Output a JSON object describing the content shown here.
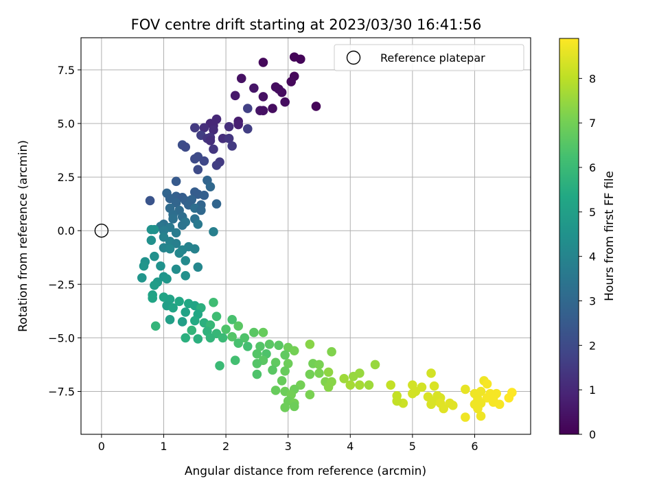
{
  "chart_data": {
    "type": "scatter",
    "title": "FOV centre drift starting at 2023/03/30 16:41:56",
    "xlabel": "Angular distance from reference (arcmin)",
    "ylabel": "Rotation from reference (arcmin)",
    "xlim": [
      -0.33,
      6.9
    ],
    "ylim": [
      -9.5,
      9.0
    ],
    "xticks": [
      0,
      1,
      2,
      3,
      4,
      5,
      6
    ],
    "xtick_labels": [
      "0",
      "1",
      "2",
      "3",
      "4",
      "5",
      "6"
    ],
    "yticks": [
      -7.5,
      -5.0,
      -2.5,
      0.0,
      2.5,
      5.0,
      7.5
    ],
    "ytick_labels": [
      "−7.5",
      "−5.0",
      "−2.5",
      "0.0",
      "2.5",
      "5.0",
      "7.5"
    ],
    "grid": true,
    "legend_position": "top-right",
    "reference_point": {
      "name": "Reference platepar",
      "x": 0,
      "y": 0
    },
    "colorbar": {
      "label": "Hours from first FF file",
      "colormap": "viridis",
      "range": [
        0,
        8.9
      ],
      "ticks": [
        0,
        1,
        2,
        3,
        4,
        5,
        6,
        7,
        8
      ],
      "tick_labels": [
        "0",
        "1",
        "2",
        "3",
        "4",
        "5",
        "6",
        "7",
        "8"
      ]
    },
    "points": [
      {
        "x": 3.1,
        "y": 8.1,
        "t": 0.1
      },
      {
        "x": 3.2,
        "y": 8.0,
        "t": 0.1
      },
      {
        "x": 2.6,
        "y": 7.85,
        "t": 0.2
      },
      {
        "x": 3.1,
        "y": 7.2,
        "t": 0.15
      },
      {
        "x": 2.25,
        "y": 7.1,
        "t": 0.4
      },
      {
        "x": 3.05,
        "y": 6.95,
        "t": 0.2
      },
      {
        "x": 2.8,
        "y": 6.7,
        "t": 0.3
      },
      {
        "x": 2.85,
        "y": 6.6,
        "t": 0.3
      },
      {
        "x": 2.45,
        "y": 6.65,
        "t": 0.5
      },
      {
        "x": 2.9,
        "y": 6.45,
        "t": 0.3
      },
      {
        "x": 2.15,
        "y": 6.3,
        "t": 0.6
      },
      {
        "x": 2.6,
        "y": 6.25,
        "t": 0.4
      },
      {
        "x": 2.95,
        "y": 6.0,
        "t": 0.3
      },
      {
        "x": 3.45,
        "y": 5.8,
        "t": 0.1
      },
      {
        "x": 2.35,
        "y": 5.7,
        "t": 1.7
      },
      {
        "x": 2.75,
        "y": 5.7,
        "t": 0.3
      },
      {
        "x": 2.55,
        "y": 5.6,
        "t": 0.5
      },
      {
        "x": 2.6,
        "y": 5.6,
        "t": 0.4
      },
      {
        "x": 1.85,
        "y": 5.2,
        "t": 1.0
      },
      {
        "x": 2.2,
        "y": 5.1,
        "t": 0.7
      },
      {
        "x": 1.75,
        "y": 5.0,
        "t": 1.0
      },
      {
        "x": 2.2,
        "y": 4.95,
        "t": 0.8
      },
      {
        "x": 1.8,
        "y": 4.9,
        "t": 1.0
      },
      {
        "x": 2.05,
        "y": 4.85,
        "t": 1.2
      },
      {
        "x": 1.5,
        "y": 4.8,
        "t": 1.5
      },
      {
        "x": 1.65,
        "y": 4.8,
        "t": 1.2
      },
      {
        "x": 2.35,
        "y": 4.75,
        "t": 1.6
      },
      {
        "x": 1.8,
        "y": 4.7,
        "t": 1.1
      },
      {
        "x": 1.6,
        "y": 4.45,
        "t": 1.6
      },
      {
        "x": 1.75,
        "y": 4.35,
        "t": 1.3
      },
      {
        "x": 1.7,
        "y": 4.3,
        "t": 1.4
      },
      {
        "x": 1.95,
        "y": 4.3,
        "t": 1.2
      },
      {
        "x": 1.75,
        "y": 4.2,
        "t": 1.2
      },
      {
        "x": 2.05,
        "y": 4.3,
        "t": 1.4
      },
      {
        "x": 1.3,
        "y": 4.0,
        "t": 2.1
      },
      {
        "x": 1.35,
        "y": 3.9,
        "t": 2.0
      },
      {
        "x": 2.1,
        "y": 3.95,
        "t": 1.5
      },
      {
        "x": 1.8,
        "y": 3.8,
        "t": 1.4
      },
      {
        "x": 1.55,
        "y": 3.45,
        "t": 2.0
      },
      {
        "x": 1.5,
        "y": 3.35,
        "t": 2.0
      },
      {
        "x": 1.65,
        "y": 3.25,
        "t": 1.9
      },
      {
        "x": 1.9,
        "y": 3.2,
        "t": 1.5
      },
      {
        "x": 1.85,
        "y": 3.05,
        "t": 1.6
      },
      {
        "x": 1.55,
        "y": 2.85,
        "t": 2.0
      },
      {
        "x": 1.2,
        "y": 2.3,
        "t": 2.5
      },
      {
        "x": 1.7,
        "y": 2.35,
        "t": 2.9
      },
      {
        "x": 1.75,
        "y": 2.05,
        "t": 3.0
      },
      {
        "x": 1.5,
        "y": 1.8,
        "t": 2.6
      },
      {
        "x": 1.05,
        "y": 1.75,
        "t": 2.9
      },
      {
        "x": 1.55,
        "y": 1.7,
        "t": 2.6
      },
      {
        "x": 1.2,
        "y": 1.6,
        "t": 2.7
      },
      {
        "x": 1.3,
        "y": 1.55,
        "t": 2.6
      },
      {
        "x": 1.65,
        "y": 1.65,
        "t": 2.7
      },
      {
        "x": 1.1,
        "y": 1.5,
        "t": 2.8
      },
      {
        "x": 0.78,
        "y": 1.4,
        "t": 2.3
      },
      {
        "x": 1.35,
        "y": 1.4,
        "t": 2.7
      },
      {
        "x": 1.45,
        "y": 1.45,
        "t": 2.8
      },
      {
        "x": 1.2,
        "y": 1.3,
        "t": 2.9
      },
      {
        "x": 1.6,
        "y": 1.2,
        "t": 2.9
      },
      {
        "x": 1.4,
        "y": 1.2,
        "t": 2.8
      },
      {
        "x": 1.85,
        "y": 1.25,
        "t": 2.9
      },
      {
        "x": 1.1,
        "y": 1.05,
        "t": 3.1
      },
      {
        "x": 1.5,
        "y": 1.05,
        "t": 3.2
      },
      {
        "x": 1.25,
        "y": 0.95,
        "t": 3.1
      },
      {
        "x": 1.6,
        "y": 0.95,
        "t": 3.0
      },
      {
        "x": 1.15,
        "y": 0.75,
        "t": 3.2
      },
      {
        "x": 1.3,
        "y": 0.65,
        "t": 3.2
      },
      {
        "x": 1.15,
        "y": 0.55,
        "t": 3.3
      },
      {
        "x": 1.5,
        "y": 0.55,
        "t": 3.3
      },
      {
        "x": 1.35,
        "y": 0.4,
        "t": 3.5
      },
      {
        "x": 1.55,
        "y": 0.3,
        "t": 3.6
      },
      {
        "x": 1.0,
        "y": 0.3,
        "t": 3.3
      },
      {
        "x": 0.95,
        "y": 0.2,
        "t": 3.5
      },
      {
        "x": 1.3,
        "y": 0.25,
        "t": 3.4
      },
      {
        "x": 1.1,
        "y": 0.15,
        "t": 3.6
      },
      {
        "x": 0.8,
        "y": 0.05,
        "t": 4.5
      },
      {
        "x": 0.85,
        "y": 0.05,
        "t": 4.5
      },
      {
        "x": 1.0,
        "y": 0.0,
        "t": 3.7
      },
      {
        "x": 1.8,
        "y": -0.05,
        "t": 3.8
      },
      {
        "x": 1.2,
        "y": -0.1,
        "t": 3.7
      },
      {
        "x": 1.0,
        "y": -0.3,
        "t": 3.9
      },
      {
        "x": 0.8,
        "y": -0.45,
        "t": 4.4
      },
      {
        "x": 1.1,
        "y": -0.5,
        "t": 3.9
      },
      {
        "x": 1.2,
        "y": -0.6,
        "t": 3.8
      },
      {
        "x": 1.4,
        "y": -0.75,
        "t": 3.9
      },
      {
        "x": 1.0,
        "y": -0.8,
        "t": 4.0
      },
      {
        "x": 1.1,
        "y": -0.85,
        "t": 4.1
      },
      {
        "x": 1.3,
        "y": -0.9,
        "t": 4.0
      },
      {
        "x": 1.5,
        "y": -0.85,
        "t": 3.9
      },
      {
        "x": 1.25,
        "y": -1.05,
        "t": 4.1
      },
      {
        "x": 0.7,
        "y": -1.45,
        "t": 4.5
      },
      {
        "x": 0.85,
        "y": -1.2,
        "t": 4.4
      },
      {
        "x": 1.35,
        "y": -1.4,
        "t": 4.2
      },
      {
        "x": 0.68,
        "y": -1.65,
        "t": 4.6
      },
      {
        "x": 0.95,
        "y": -1.65,
        "t": 4.5
      },
      {
        "x": 1.55,
        "y": -1.7,
        "t": 4.1
      },
      {
        "x": 1.2,
        "y": -1.8,
        "t": 4.3
      },
      {
        "x": 0.65,
        "y": -2.2,
        "t": 4.6
      },
      {
        "x": 0.9,
        "y": -2.4,
        "t": 4.8
      },
      {
        "x": 0.85,
        "y": -2.55,
        "t": 4.9
      },
      {
        "x": 1.0,
        "y": -2.15,
        "t": 4.6
      },
      {
        "x": 1.05,
        "y": -2.25,
        "t": 4.7
      },
      {
        "x": 1.35,
        "y": -2.1,
        "t": 4.4
      },
      {
        "x": 0.82,
        "y": -3.0,
        "t": 5.1
      },
      {
        "x": 0.82,
        "y": -3.15,
        "t": 5.2
      },
      {
        "x": 1.0,
        "y": -3.1,
        "t": 5.2
      },
      {
        "x": 1.1,
        "y": -3.2,
        "t": 5.1
      },
      {
        "x": 1.25,
        "y": -3.3,
        "t": 5.3
      },
      {
        "x": 1.05,
        "y": -3.5,
        "t": 5.0
      },
      {
        "x": 1.15,
        "y": -3.6,
        "t": 5.2
      },
      {
        "x": 1.4,
        "y": -3.4,
        "t": 5.3
      },
      {
        "x": 1.5,
        "y": -3.5,
        "t": 5.2
      },
      {
        "x": 1.6,
        "y": -3.6,
        "t": 5.6
      },
      {
        "x": 1.8,
        "y": -3.35,
        "t": 6.1
      },
      {
        "x": 1.35,
        "y": -3.8,
        "t": 5.1
      },
      {
        "x": 1.55,
        "y": -3.9,
        "t": 5.3
      },
      {
        "x": 1.1,
        "y": -4.15,
        "t": 5.0
      },
      {
        "x": 1.3,
        "y": -4.25,
        "t": 5.0
      },
      {
        "x": 1.5,
        "y": -4.2,
        "t": 5.4
      },
      {
        "x": 1.65,
        "y": -4.3,
        "t": 5.6
      },
      {
        "x": 1.85,
        "y": -4.0,
        "t": 6.1
      },
      {
        "x": 2.1,
        "y": -4.15,
        "t": 6.3
      },
      {
        "x": 1.75,
        "y": -4.4,
        "t": 5.9
      },
      {
        "x": 0.87,
        "y": -4.45,
        "t": 5.8
      },
      {
        "x": 1.45,
        "y": -4.65,
        "t": 5.8
      },
      {
        "x": 1.7,
        "y": -4.7,
        "t": 5.7
      },
      {
        "x": 1.85,
        "y": -4.8,
        "t": 5.9
      },
      {
        "x": 2.0,
        "y": -4.6,
        "t": 6.4
      },
      {
        "x": 2.2,
        "y": -4.45,
        "t": 6.6
      },
      {
        "x": 1.35,
        "y": -5.0,
        "t": 5.6
      },
      {
        "x": 1.55,
        "y": -5.05,
        "t": 5.6
      },
      {
        "x": 1.75,
        "y": -5.0,
        "t": 5.8
      },
      {
        "x": 1.95,
        "y": -5.0,
        "t": 6.0
      },
      {
        "x": 2.1,
        "y": -4.95,
        "t": 6.5
      },
      {
        "x": 2.3,
        "y": -5.0,
        "t": 6.4
      },
      {
        "x": 2.45,
        "y": -4.75,
        "t": 6.6
      },
      {
        "x": 2.6,
        "y": -4.75,
        "t": 6.8
      },
      {
        "x": 2.2,
        "y": -5.25,
        "t": 6.3
      },
      {
        "x": 2.35,
        "y": -5.4,
        "t": 6.2
      },
      {
        "x": 2.55,
        "y": -5.4,
        "t": 6.5
      },
      {
        "x": 2.7,
        "y": -5.3,
        "t": 6.6
      },
      {
        "x": 2.85,
        "y": -5.35,
        "t": 6.6
      },
      {
        "x": 3.0,
        "y": -5.45,
        "t": 6.9
      },
      {
        "x": 3.1,
        "y": -5.6,
        "t": 7.0
      },
      {
        "x": 3.35,
        "y": -5.3,
        "t": 7.3
      },
      {
        "x": 3.7,
        "y": -5.65,
        "t": 7.2
      },
      {
        "x": 2.5,
        "y": -5.75,
        "t": 6.5
      },
      {
        "x": 2.65,
        "y": -5.75,
        "t": 6.4
      },
      {
        "x": 2.95,
        "y": -5.8,
        "t": 6.7
      },
      {
        "x": 2.6,
        "y": -6.05,
        "t": 6.6
      },
      {
        "x": 2.15,
        "y": -6.05,
        "t": 6.2
      },
      {
        "x": 2.5,
        "y": -6.2,
        "t": 6.5
      },
      {
        "x": 2.8,
        "y": -6.15,
        "t": 6.7
      },
      {
        "x": 3.0,
        "y": -6.2,
        "t": 6.9
      },
      {
        "x": 3.4,
        "y": -6.2,
        "t": 7.0
      },
      {
        "x": 3.5,
        "y": -6.25,
        "t": 7.1
      },
      {
        "x": 1.9,
        "y": -6.3,
        "t": 6.0
      },
      {
        "x": 2.75,
        "y": -6.5,
        "t": 6.6
      },
      {
        "x": 2.95,
        "y": -6.55,
        "t": 6.8
      },
      {
        "x": 2.5,
        "y": -6.7,
        "t": 6.4
      },
      {
        "x": 3.35,
        "y": -6.7,
        "t": 7.0
      },
      {
        "x": 3.5,
        "y": -6.65,
        "t": 7.1
      },
      {
        "x": 3.65,
        "y": -6.6,
        "t": 7.4
      },
      {
        "x": 3.9,
        "y": -6.9,
        "t": 7.6
      },
      {
        "x": 4.05,
        "y": -6.8,
        "t": 7.5
      },
      {
        "x": 4.15,
        "y": -6.65,
        "t": 7.5
      },
      {
        "x": 4.4,
        "y": -6.25,
        "t": 7.5
      },
      {
        "x": 2.9,
        "y": -7.0,
        "t": 6.8
      },
      {
        "x": 3.2,
        "y": -7.2,
        "t": 7.0
      },
      {
        "x": 3.6,
        "y": -7.05,
        "t": 7.2
      },
      {
        "x": 3.7,
        "y": -7.05,
        "t": 7.3
      },
      {
        "x": 3.65,
        "y": -7.3,
        "t": 7.3
      },
      {
        "x": 4.0,
        "y": -7.2,
        "t": 7.7
      },
      {
        "x": 4.15,
        "y": -7.2,
        "t": 7.7
      },
      {
        "x": 4.3,
        "y": -7.2,
        "t": 7.6
      },
      {
        "x": 2.8,
        "y": -7.45,
        "t": 6.8
      },
      {
        "x": 2.95,
        "y": -7.5,
        "t": 6.9
      },
      {
        "x": 3.1,
        "y": -7.4,
        "t": 6.9
      },
      {
        "x": 3.05,
        "y": -7.65,
        "t": 7.0
      },
      {
        "x": 3.35,
        "y": -7.65,
        "t": 7.1
      },
      {
        "x": 3.0,
        "y": -7.95,
        "t": 6.9
      },
      {
        "x": 3.1,
        "y": -8.05,
        "t": 7.0
      },
      {
        "x": 2.95,
        "y": -8.25,
        "t": 6.9
      },
      {
        "x": 3.1,
        "y": -8.2,
        "t": 6.9
      },
      {
        "x": 4.65,
        "y": -7.2,
        "t": 8.1
      },
      {
        "x": 5.0,
        "y": -7.2,
        "t": 8.3
      },
      {
        "x": 5.15,
        "y": -7.3,
        "t": 8.3
      },
      {
        "x": 5.3,
        "y": -6.65,
        "t": 8.3
      },
      {
        "x": 5.35,
        "y": -7.25,
        "t": 8.4
      },
      {
        "x": 4.75,
        "y": -7.7,
        "t": 8.1
      },
      {
        "x": 5.0,
        "y": -7.6,
        "t": 8.3
      },
      {
        "x": 5.05,
        "y": -7.5,
        "t": 8.3
      },
      {
        "x": 5.25,
        "y": -7.75,
        "t": 8.4
      },
      {
        "x": 5.4,
        "y": -7.7,
        "t": 8.4
      },
      {
        "x": 5.45,
        "y": -7.8,
        "t": 8.4
      },
      {
        "x": 5.35,
        "y": -7.95,
        "t": 8.4
      },
      {
        "x": 5.45,
        "y": -8.05,
        "t": 8.5
      },
      {
        "x": 5.6,
        "y": -8.05,
        "t": 8.5
      },
      {
        "x": 5.3,
        "y": -8.1,
        "t": 8.4
      },
      {
        "x": 5.5,
        "y": -8.3,
        "t": 8.5
      },
      {
        "x": 4.85,
        "y": -8.05,
        "t": 8.2
      },
      {
        "x": 4.75,
        "y": -7.95,
        "t": 8.1
      },
      {
        "x": 5.65,
        "y": -8.15,
        "t": 8.5
      },
      {
        "x": 5.85,
        "y": -7.4,
        "t": 8.6
      },
      {
        "x": 5.85,
        "y": -8.7,
        "t": 8.7
      },
      {
        "x": 6.0,
        "y": -7.6,
        "t": 8.7
      },
      {
        "x": 6.05,
        "y": -7.85,
        "t": 8.7
      },
      {
        "x": 6.1,
        "y": -7.5,
        "t": 8.7
      },
      {
        "x": 6.15,
        "y": -7.0,
        "t": 8.7
      },
      {
        "x": 6.2,
        "y": -7.15,
        "t": 8.8
      },
      {
        "x": 6.25,
        "y": -7.6,
        "t": 8.8
      },
      {
        "x": 6.2,
        "y": -7.8,
        "t": 8.8
      },
      {
        "x": 6.35,
        "y": -7.6,
        "t": 8.8
      },
      {
        "x": 6.0,
        "y": -8.1,
        "t": 8.7
      },
      {
        "x": 6.1,
        "y": -8.05,
        "t": 8.7
      },
      {
        "x": 6.3,
        "y": -7.85,
        "t": 8.8
      },
      {
        "x": 6.4,
        "y": -8.1,
        "t": 8.8
      },
      {
        "x": 6.55,
        "y": -7.8,
        "t": 8.9
      },
      {
        "x": 6.6,
        "y": -7.55,
        "t": 8.9
      },
      {
        "x": 6.05,
        "y": -8.3,
        "t": 8.7
      },
      {
        "x": 6.1,
        "y": -8.65,
        "t": 8.7
      },
      {
        "x": 6.3,
        "y": -8.0,
        "t": 8.8
      }
    ]
  }
}
